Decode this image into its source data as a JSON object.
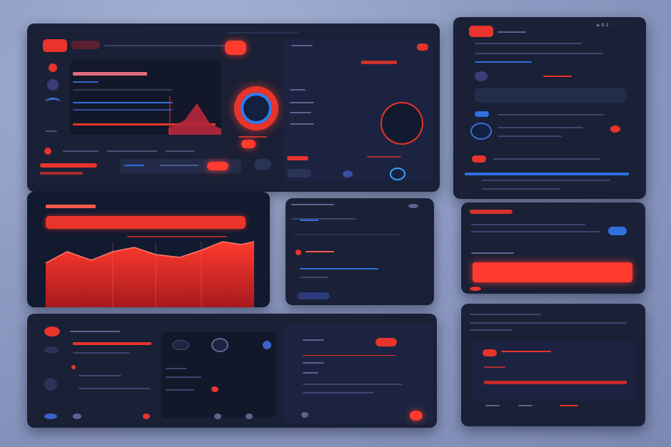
{
  "window": {
    "top_left": {
      "title": "",
      "search": ""
    },
    "right_mobile": {
      "status": "≡ 0 1 ."
    }
  },
  "colors": {
    "accent": "#e8342a",
    "accent_blue": "#2f6fe0",
    "panel": "#1a2036",
    "bg": "#8e9cc4"
  },
  "icons": [
    "menu-icon",
    "home-icon",
    "user-icon",
    "gear-icon",
    "play-icon",
    "search-icon",
    "bell-icon"
  ],
  "cards": {
    "chart_card": {
      "chart_kind": "area",
      "series_color": "#e8342a"
    },
    "right_list": {
      "items": 5
    }
  }
}
